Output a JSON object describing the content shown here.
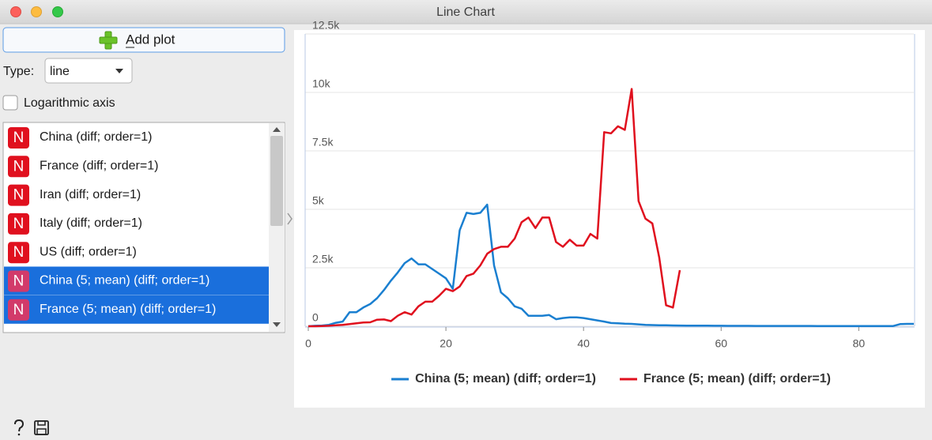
{
  "window": {
    "title": "Line Chart"
  },
  "controls": {
    "add_plot": "Add plot",
    "type_label": "Type:",
    "type_value": "line",
    "log_label": "Logarithmic axis",
    "log_checked": false
  },
  "list": {
    "items": [
      {
        "icon": "N",
        "label": "China (diff; order=1)",
        "selected": false
      },
      {
        "icon": "N",
        "label": "France (diff; order=1)",
        "selected": false
      },
      {
        "icon": "N",
        "label": "Iran (diff; order=1)",
        "selected": false
      },
      {
        "icon": "N",
        "label": "Italy (diff; order=1)",
        "selected": false
      },
      {
        "icon": "N",
        "label": "US (diff; order=1)",
        "selected": false
      },
      {
        "icon": "N",
        "label": "China (5; mean) (diff; order=1)",
        "selected": true
      },
      {
        "icon": "N",
        "label": "France (5; mean) (diff; order=1)",
        "selected": true
      }
    ]
  },
  "chart_data": {
    "type": "line",
    "x": [
      0,
      1,
      2,
      3,
      4,
      5,
      6,
      7,
      8,
      9,
      10,
      11,
      12,
      13,
      14,
      15,
      16,
      17,
      18,
      19,
      20,
      21,
      22,
      23,
      24,
      25,
      26,
      27,
      28,
      29,
      30,
      31,
      32,
      33,
      34,
      35,
      36,
      37,
      38,
      39,
      40,
      41,
      42,
      43,
      44,
      45,
      46,
      47,
      48,
      49,
      50,
      51,
      52,
      53,
      54,
      55,
      56,
      57,
      58,
      59,
      60,
      61,
      62,
      63,
      64,
      65,
      66,
      67,
      68,
      69,
      70,
      71,
      72,
      73,
      74,
      75,
      76,
      77,
      78,
      79,
      80,
      81,
      82,
      83,
      84,
      85,
      86,
      87,
      88
    ],
    "series": [
      {
        "name": "China (5; mean) (diff; order=1)",
        "color": "#1a7fd0",
        "values": [
          0,
          20,
          30,
          60,
          150,
          200,
          600,
          600,
          800,
          950,
          1200,
          1550,
          1950,
          2300,
          2700,
          2900,
          2650,
          2650,
          2450,
          2250,
          2050,
          1600,
          4100,
          4850,
          4800,
          4850,
          5200,
          2600,
          1450,
          1200,
          850,
          750,
          450,
          450,
          450,
          480,
          300,
          350,
          380,
          380,
          350,
          300,
          250,
          200,
          140,
          130,
          110,
          100,
          80,
          60,
          50,
          45,
          40,
          35,
          30,
          28,
          26,
          24,
          22,
          20,
          20,
          18,
          18,
          16,
          16,
          15,
          15,
          14,
          14,
          13,
          13,
          12,
          12,
          12,
          11,
          11,
          11,
          10,
          10,
          10,
          10,
          10,
          10,
          10,
          10,
          10,
          90,
          100,
          100
        ]
      },
      {
        "name": "France (5; mean) (diff; order=1)",
        "color": "#e0101e",
        "values": [
          0,
          0,
          10,
          20,
          40,
          60,
          90,
          130,
          160,
          170,
          280,
          290,
          220,
          450,
          600,
          500,
          850,
          1050,
          1050,
          1300,
          1600,
          1500,
          1700,
          2150,
          2250,
          2600,
          3100,
          3300,
          3400,
          3400,
          3750,
          4450,
          4650,
          4200,
          4650,
          4650,
          3600,
          3400,
          3700,
          3450,
          3450,
          3950,
          3750,
          8300,
          8250,
          8550,
          8400,
          10150,
          5350,
          4600,
          4400,
          2950,
          900,
          800,
          2400,
          null,
          null,
          null,
          null,
          null,
          null,
          null,
          null,
          null,
          null,
          null,
          null,
          null,
          null,
          null,
          null,
          null,
          null,
          null,
          null,
          null,
          null,
          null,
          null,
          null,
          null,
          null,
          null,
          null,
          null,
          null,
          null,
          null,
          null
        ]
      }
    ],
    "xlim": [
      0,
      88
    ],
    "xticks": [
      0,
      20,
      40,
      60,
      80
    ],
    "ylim": [
      0,
      12500
    ],
    "yticks": [
      0,
      {
        "value": 2500,
        "label": "2.5k"
      },
      {
        "value": 5000,
        "label": "5k"
      },
      {
        "value": 7500,
        "label": "7.5k"
      },
      {
        "value": 10000,
        "label": "10k"
      },
      {
        "value": 12500,
        "label": "12.5k"
      }
    ],
    "grid": true,
    "legend": "bottom"
  }
}
